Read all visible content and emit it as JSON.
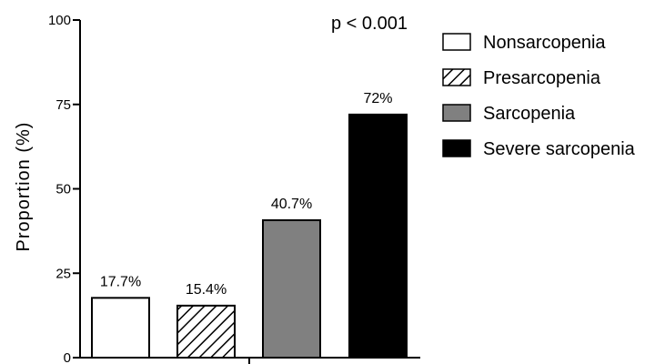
{
  "chart_data": {
    "type": "bar",
    "title": "",
    "xlabel": "",
    "ylabel": "Proportion (%)",
    "ylim": [
      0,
      100
    ],
    "yticks": [
      0,
      25,
      50,
      75,
      100
    ],
    "ytick_labels": [
      "0",
      "25",
      "50",
      "75",
      "100"
    ],
    "grid": false,
    "legend_position": "right",
    "annotation": "p < 0.001",
    "categories": [
      "Nonsarcopenia",
      "Presarcopenia",
      "Sarcopenia",
      "Severe sarcopenia"
    ],
    "values": [
      17.7,
      15.4,
      40.7,
      72
    ],
    "data_labels": [
      "17.7%",
      "15.4%",
      "40.7%",
      "72%"
    ],
    "fills": [
      "white",
      "hatched",
      "gray",
      "black"
    ],
    "colors": {
      "white": "#ffffff",
      "gray": "#808080",
      "black": "#000000",
      "stroke": "#000000"
    }
  }
}
